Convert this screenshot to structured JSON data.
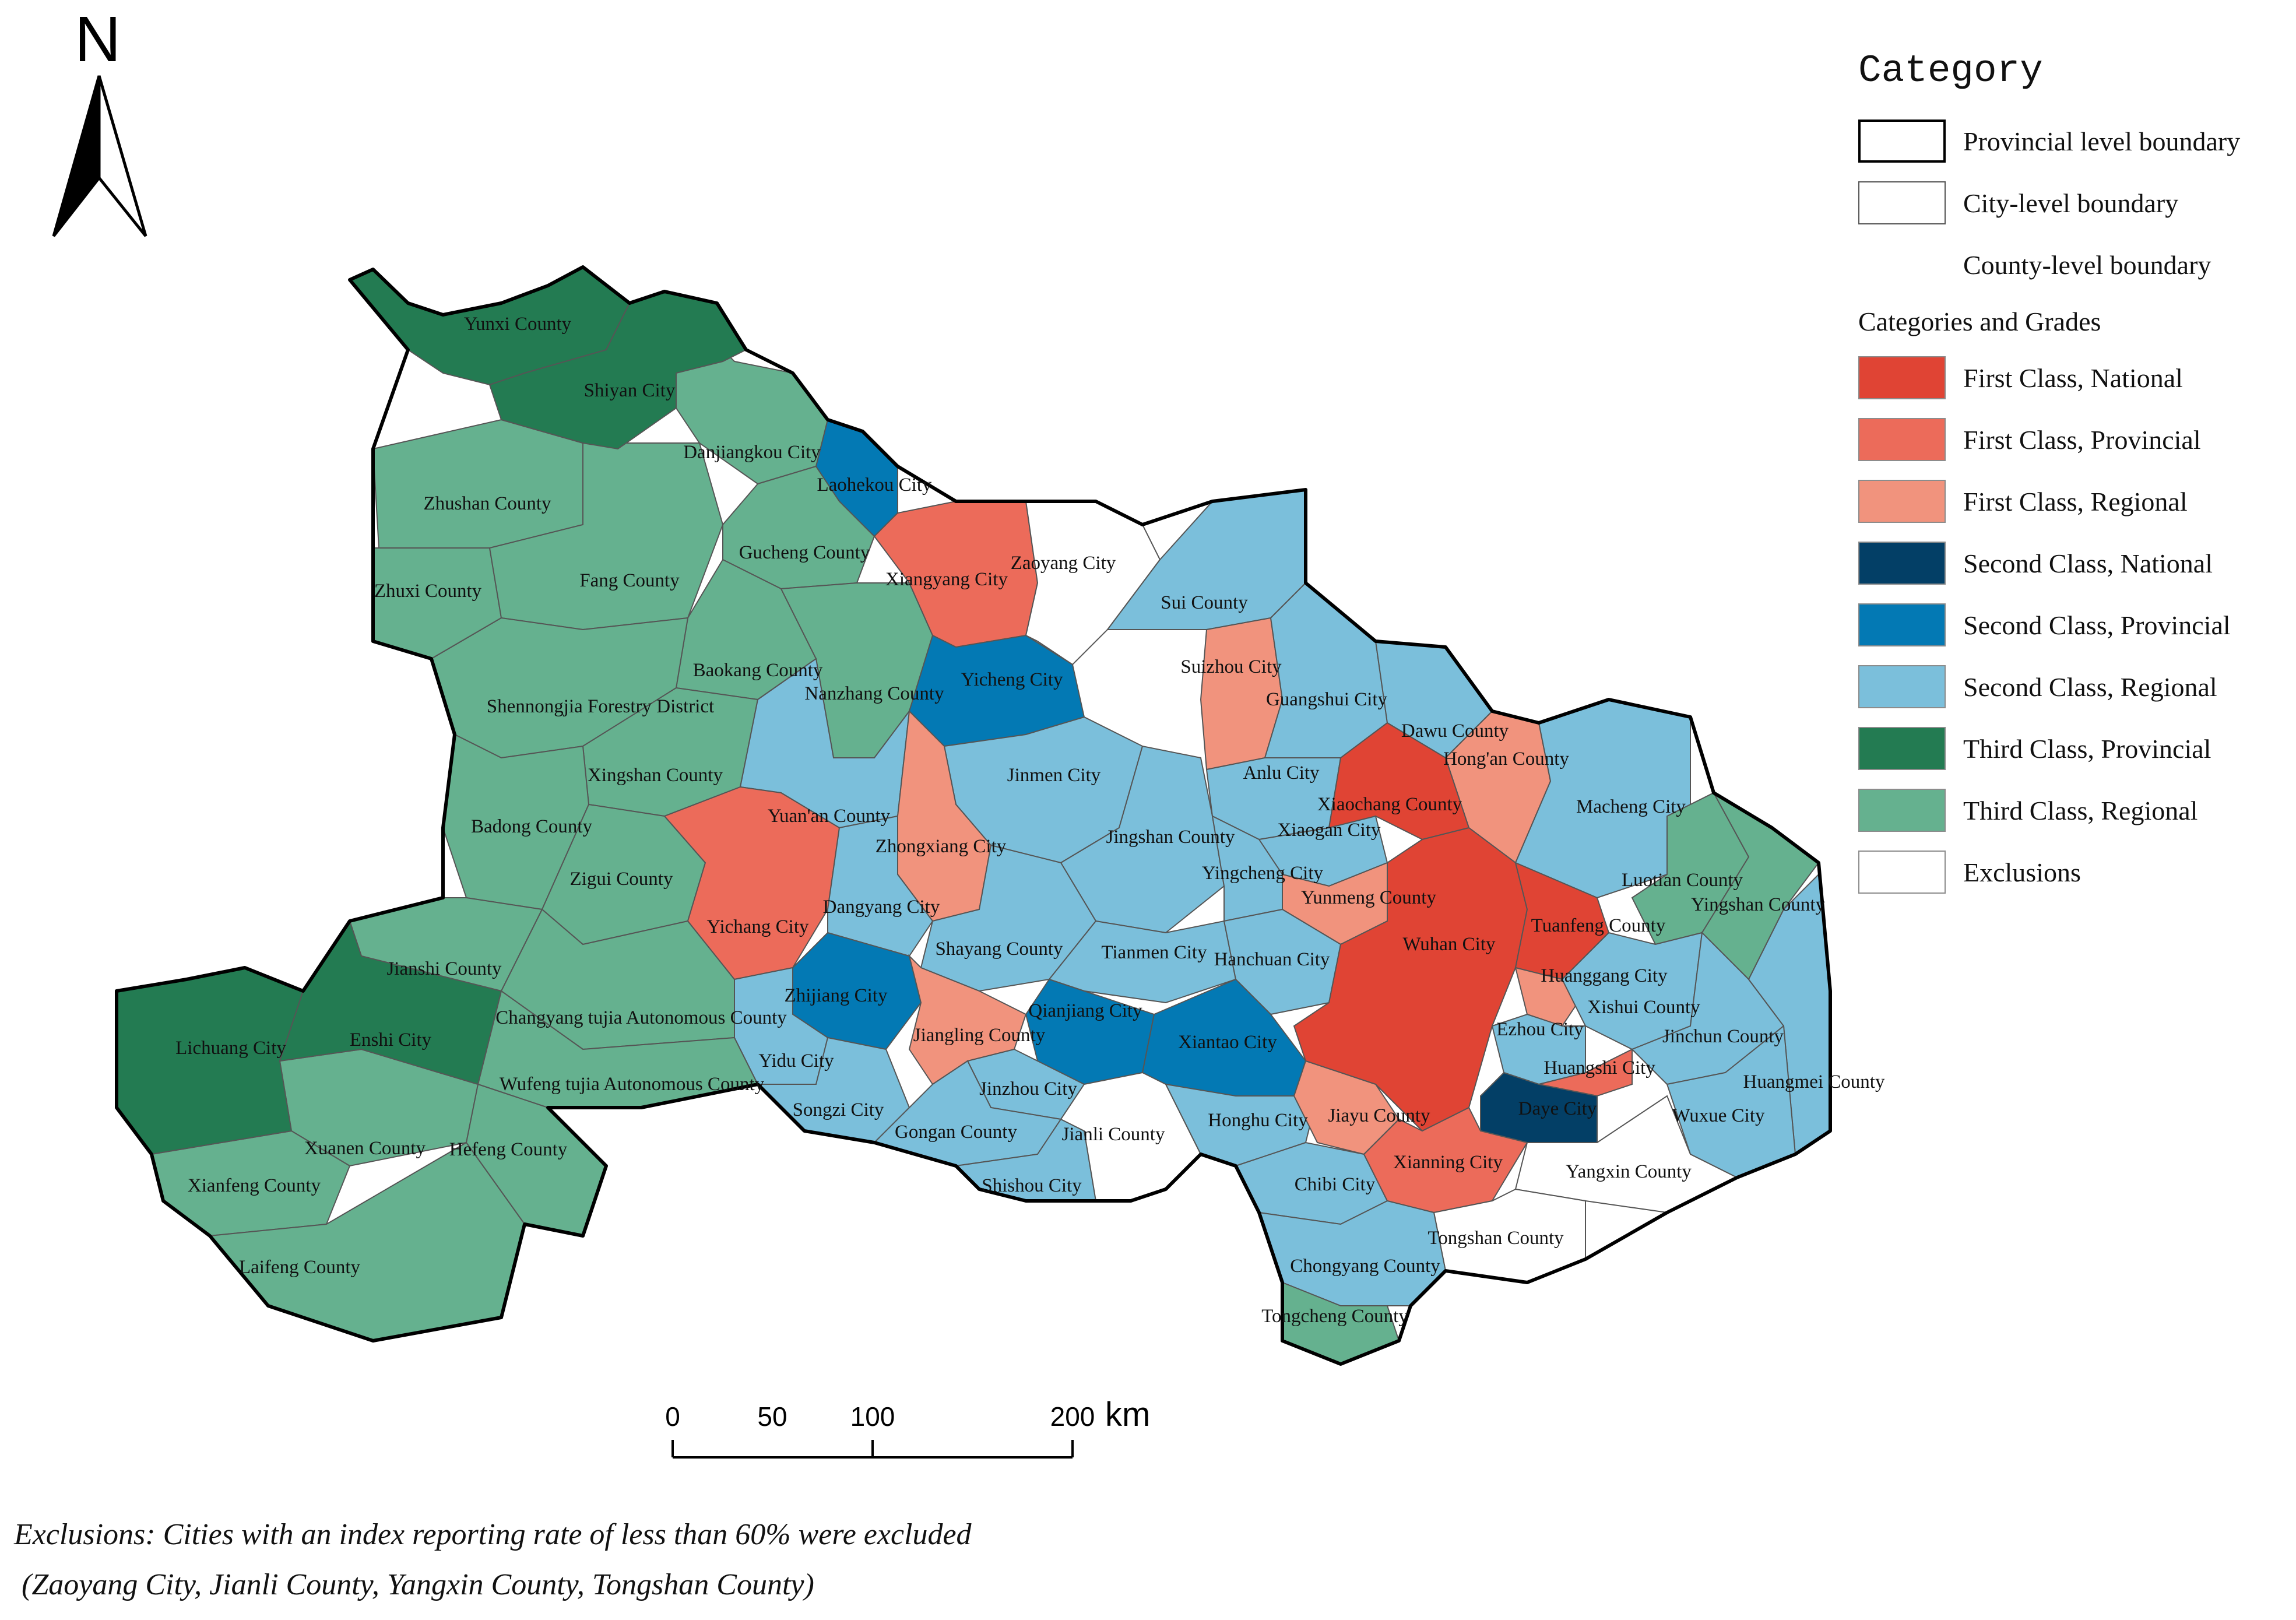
{
  "north_arrow": {
    "letter": "N"
  },
  "legend": {
    "title": "Category",
    "boundaries": [
      {
        "label": "Provincial level boundary",
        "stroke": "#000000"
      },
      {
        "label": "City-level boundary",
        "stroke": "#555555"
      },
      {
        "label": "County-level boundary",
        "stroke": "#ffffff"
      }
    ],
    "grades_title": "Categories and Grades",
    "grades": [
      {
        "key": "first_national",
        "label": "First Class, National",
        "color": "#e04434"
      },
      {
        "key": "first_provincial",
        "label": "First Class, Provincial",
        "color": "#ec6b5a"
      },
      {
        "key": "first_regional",
        "label": "First Class, Regional",
        "color": "#f1937d"
      },
      {
        "key": "second_national",
        "label": "Second Class, National",
        "color": "#033f66"
      },
      {
        "key": "second_provincial",
        "label": "Second Class, Provincial",
        "color": "#0379b4"
      },
      {
        "key": "second_regional",
        "label": "Second Class, Regional",
        "color": "#7bbfdb"
      },
      {
        "key": "third_provincial",
        "label": "Third Class, Provincial",
        "color": "#237b52"
      },
      {
        "key": "third_regional",
        "label": "Third Class, Regional",
        "color": "#65b18f"
      },
      {
        "key": "exclusions",
        "label": "Exclusions",
        "color": "#ffffff"
      }
    ]
  },
  "regions": [
    {
      "name": "Yunxi County",
      "category": "third_provincial"
    },
    {
      "name": "Shiyan City",
      "category": "third_provincial"
    },
    {
      "name": "Danjiangkou City",
      "category": "third_regional"
    },
    {
      "name": "Zhushan County",
      "category": "third_regional"
    },
    {
      "name": "Zhuxi County",
      "category": "third_regional"
    },
    {
      "name": "Fang County",
      "category": "third_regional"
    },
    {
      "name": "Gucheng County",
      "category": "third_regional"
    },
    {
      "name": "Baokang County",
      "category": "third_regional"
    },
    {
      "name": "Nanzhang County",
      "category": "third_regional"
    },
    {
      "name": "Shennongjia Forestry District",
      "category": "third_regional"
    },
    {
      "name": "Xingshan County",
      "category": "third_regional"
    },
    {
      "name": "Badong County",
      "category": "third_regional"
    },
    {
      "name": "Zigui County",
      "category": "third_regional"
    },
    {
      "name": "Jianshi County",
      "category": "third_regional"
    },
    {
      "name": "Changyang tujia Autonomous County",
      "category": "third_regional"
    },
    {
      "name": "Wufeng tujia Autonomous County",
      "category": "third_regional"
    },
    {
      "name": "Hefeng County",
      "category": "third_regional"
    },
    {
      "name": "Xuanen County",
      "category": "third_regional"
    },
    {
      "name": "Xianfeng County",
      "category": "third_regional"
    },
    {
      "name": "Laifeng County",
      "category": "third_regional"
    },
    {
      "name": "Lichuang City",
      "category": "third_provincial"
    },
    {
      "name": "Enshi City",
      "category": "third_provincial"
    },
    {
      "name": "Laohekou City",
      "category": "second_provincial"
    },
    {
      "name": "Xiangyang City",
      "category": "first_provincial"
    },
    {
      "name": "Zaoyang City",
      "category": "exclusions"
    },
    {
      "name": "Yicheng City",
      "category": "second_provincial"
    },
    {
      "name": "Sui County",
      "category": "second_regional"
    },
    {
      "name": "Suizhou City",
      "category": "first_regional"
    },
    {
      "name": "Guangshui City",
      "category": "second_regional"
    },
    {
      "name": "Dawu County",
      "category": "second_regional"
    },
    {
      "name": "Hong'an County",
      "category": "first_regional"
    },
    {
      "name": "Macheng City",
      "category": "second_regional"
    },
    {
      "name": "Luotian County",
      "category": "third_regional"
    },
    {
      "name": "Yingshan County",
      "category": "third_regional"
    },
    {
      "name": "Jinmen City",
      "category": "second_regional"
    },
    {
      "name": "Anlu City",
      "category": "second_regional"
    },
    {
      "name": "Xiaochang County",
      "category": "first_national"
    },
    {
      "name": "Xiaogan City",
      "category": "second_regional"
    },
    {
      "name": "Yuan'an County",
      "category": "second_regional"
    },
    {
      "name": "Zhongxiang City",
      "category": "first_regional"
    },
    {
      "name": "Jingshan County",
      "category": "second_regional"
    },
    {
      "name": "Yingcheng City",
      "category": "second_regional"
    },
    {
      "name": "Yunmeng County",
      "category": "first_regional"
    },
    {
      "name": "Yichang City",
      "category": "first_provincial"
    },
    {
      "name": "Dangyang City",
      "category": "second_regional"
    },
    {
      "name": "Shayang County",
      "category": "second_regional"
    },
    {
      "name": "Tianmen City",
      "category": "second_regional"
    },
    {
      "name": "Hanchuan City",
      "category": "second_regional"
    },
    {
      "name": "Wuhan City",
      "category": "first_national"
    },
    {
      "name": "Tuanfeng County",
      "category": "first_national"
    },
    {
      "name": "Huanggang City",
      "category": "first_regional"
    },
    {
      "name": "Xishui County",
      "category": "second_regional"
    },
    {
      "name": "Zhijiang City",
      "category": "second_provincial"
    },
    {
      "name": "Jiangling County",
      "category": "first_regional"
    },
    {
      "name": "Qianjiang City",
      "category": "second_provincial"
    },
    {
      "name": "Xiantao City",
      "category": "second_provincial"
    },
    {
      "name": "Ezhou City",
      "category": "second_regional"
    },
    {
      "name": "Jinchun County",
      "category": "second_regional"
    },
    {
      "name": "Huangshi City",
      "category": "first_provincial"
    },
    {
      "name": "Huangmei County",
      "category": "second_regional"
    },
    {
      "name": "Yidu City",
      "category": "second_regional"
    },
    {
      "name": "Songzi City",
      "category": "second_regional"
    },
    {
      "name": "Jinzhou City",
      "category": "second_regional"
    },
    {
      "name": "Gongan County",
      "category": "second_regional"
    },
    {
      "name": "Jianli County",
      "category": "exclusions"
    },
    {
      "name": "Honghu City",
      "category": "second_regional"
    },
    {
      "name": "Jiayu County",
      "category": "first_regional"
    },
    {
      "name": "Daye City",
      "category": "second_national"
    },
    {
      "name": "Wuxue City",
      "category": "second_regional"
    },
    {
      "name": "Shishou City",
      "category": "second_regional"
    },
    {
      "name": "Chibi City",
      "category": "second_regional"
    },
    {
      "name": "Xianning City",
      "category": "first_provincial"
    },
    {
      "name": "Yangxin County",
      "category": "exclusions"
    },
    {
      "name": "Tongshan County",
      "category": "exclusions"
    },
    {
      "name": "Chongyang County",
      "category": "second_regional"
    },
    {
      "name": "Tongcheng County",
      "category": "third_regional"
    }
  ],
  "scale_bar": {
    "ticks": [
      "0",
      "50",
      "100",
      "200"
    ],
    "unit": "km"
  },
  "note": {
    "line1": "Exclusions: Cities with an index reporting rate of less than 60% were excluded",
    "line2": " (Zaoyang City, Jianli County, Yangxin County, Tongshan County)"
  }
}
